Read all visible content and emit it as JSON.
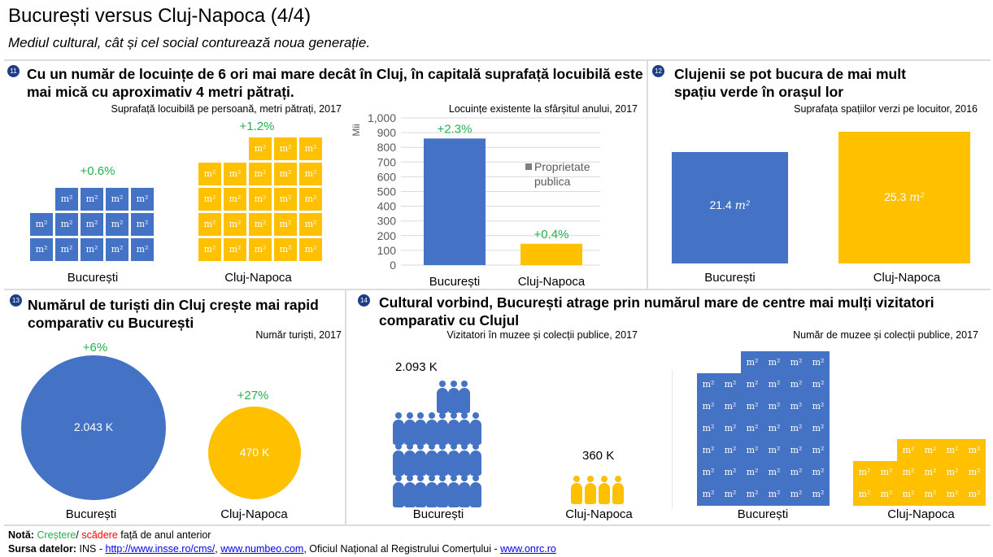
{
  "page": {
    "title": "București versus Cluj-Napoca (4/4)",
    "subtitle": "Mediul cultural, cât și cel social conturează noua generație."
  },
  "colors": {
    "bucuresti": "#4472c4",
    "cluj": "#ffc000",
    "increase": "#22b24c",
    "decrease": "#ff0000",
    "legend": "#808080"
  },
  "panel11": {
    "number": "11",
    "heading": "Cu un număr de locuințe de 6 ori mai mare decât în Cluj, în capitală suprafață locuibilă este mai mică cu aproximativ 4 metri pătrați.",
    "caption": "Suprafață locuibilă pe persoană, metri pătrați, 2017",
    "unit": "m²",
    "bucuresti": {
      "label": "București",
      "change": "+0.6%"
    },
    "cluj": {
      "label": "Cluj-Napoca",
      "change": "+1.2%"
    }
  },
  "panel11b": {
    "caption": "Locuințe existente la sfârșitul anului, 2017"
  },
  "panel12": {
    "number": "12",
    "heading": "Clujenii se pot bucura de mai mult spațiu verde în orașul lor",
    "caption": "Suprafața spațiilor verzi pe locuitor, 2016",
    "bucuresti": {
      "label": "București",
      "value": "21.4"
    },
    "cluj": {
      "label": "Cluj-Napoca",
      "value": "25.3"
    },
    "unit": "m²"
  },
  "panel13": {
    "number": "13",
    "heading": "Numărul de turiști din Cluj crește mai rapid comparativ cu București",
    "caption": "Număr turiști, 2017",
    "bucuresti": {
      "label": "București",
      "value": "2.043 K",
      "change": "+6%"
    },
    "cluj": {
      "label": "Cluj-Napoca",
      "value": "470 K",
      "change": "+27%"
    }
  },
  "panel14": {
    "number": "14",
    "heading": "Cultural vorbind, București atrage prin numărul mare de centre mai mulți vizitatori comparativ cu Clujul",
    "caption_left": "Vizitatori în muzee și colecții publice, 2017",
    "caption_right": "Număr de muzee și colecții publice, 2017",
    "bucuresti": {
      "label": "București",
      "visitors": "2.093 K"
    },
    "cluj": {
      "label": "Cluj-Napoca",
      "visitors": "360 K"
    },
    "unit": "m²"
  },
  "chart_data": [
    {
      "type": "bar",
      "title": "Locuințe existente la sfârșitul anului, 2017",
      "ylabel": "Mii",
      "categories": [
        "București",
        "Cluj-Napoca"
      ],
      "series": [
        {
          "name": "Proprietate publica",
          "values": [
            860,
            145
          ]
        }
      ],
      "data_labels": [
        "+2.3%",
        "+0.4%"
      ],
      "ylim": [
        0,
        1000
      ],
      "yticks": [
        "0",
        "100",
        "200",
        "300",
        "400",
        "500",
        "600",
        "700",
        "800",
        "900",
        "1,000"
      ],
      "grid": true,
      "legend": "right"
    },
    {
      "type": "bar",
      "title": "Suprafața spațiilor verzi pe locuitor, 2016",
      "categories": [
        "București",
        "Cluj-Napoca"
      ],
      "values": [
        21.4,
        25.3
      ],
      "ylim": [
        0,
        25.3
      ],
      "grid": false
    }
  ],
  "footer": {
    "note_label": "Notă:",
    "note_up": "Creștere",
    "note_sep": "/ ",
    "note_down": "scădere",
    "note_rest": " față de anul anterior",
    "source_label": "Sursa datelor:",
    "source_1": "INS - ",
    "link_1": "http://www.insse.ro/cms/",
    "sep_1": ", ",
    "link_2": "www.numbeo.com",
    "source_2": ", Oficiul Național al Registrului Comerțului - ",
    "link_3": "www.onrc.ro"
  }
}
